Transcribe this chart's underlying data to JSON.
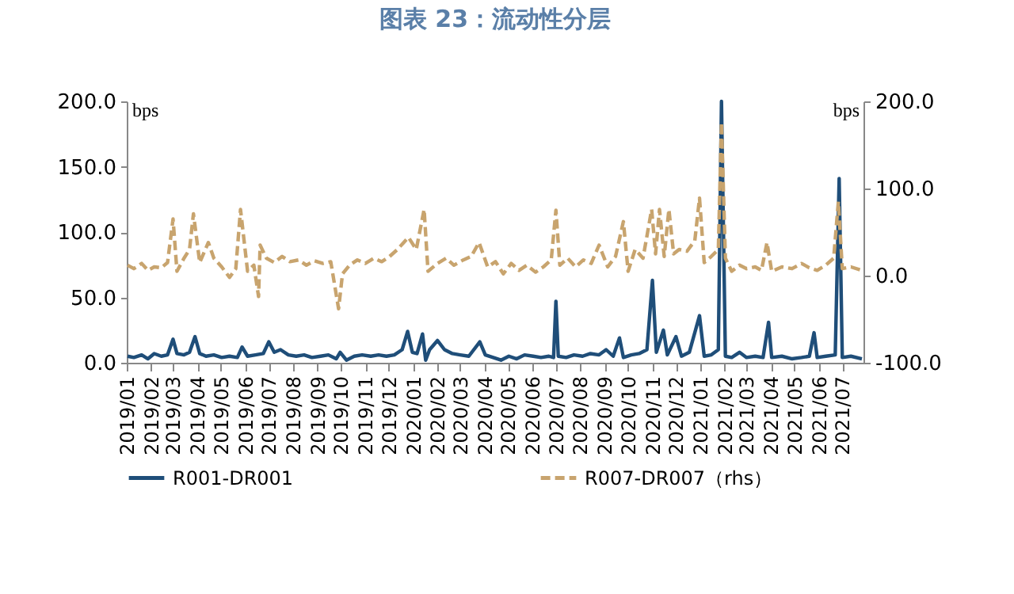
{
  "chart_data": {
    "type": "line",
    "title": "图表 23：流动性分层",
    "ylabel": "bps",
    "y2label": "bps",
    "legend": "bottom",
    "grid": false,
    "xlim": [
      "2019-01-01",
      "2021-07-28"
    ],
    "xticks": [
      {
        "value": "2019-01",
        "label": "2019/01"
      },
      {
        "value": "2019-02",
        "label": "2019/02"
      },
      {
        "value": "2019-03",
        "label": "2019/03"
      },
      {
        "value": "2019-04",
        "label": "2019/04"
      },
      {
        "value": "2019-05",
        "label": "2019/05"
      },
      {
        "value": "2019-06",
        "label": "2019/06"
      },
      {
        "value": "2019-07",
        "label": "2019/07"
      },
      {
        "value": "2019-08",
        "label": "2019/08"
      },
      {
        "value": "2019-09",
        "label": "2019/09"
      },
      {
        "value": "2019-10",
        "label": "2019/10"
      },
      {
        "value": "2019-11",
        "label": "2019/11"
      },
      {
        "value": "2019-12",
        "label": "2019/12"
      },
      {
        "value": "2020-01",
        "label": "2020/01"
      },
      {
        "value": "2020-02",
        "label": "2020/02"
      },
      {
        "value": "2020-03",
        "label": "2020/03"
      },
      {
        "value": "2020-04",
        "label": "2020/04"
      },
      {
        "value": "2020-05",
        "label": "2020/05"
      },
      {
        "value": "2020-06",
        "label": "2020/06"
      },
      {
        "value": "2020-07",
        "label": "2020/07"
      },
      {
        "value": "2020-08",
        "label": "2020/08"
      },
      {
        "value": "2020-09",
        "label": "2020/09"
      },
      {
        "value": "2020-10",
        "label": "2020/10"
      },
      {
        "value": "2020-11",
        "label": "2020/11"
      },
      {
        "value": "2020-12",
        "label": "2020/12"
      },
      {
        "value": "2021-01",
        "label": "2021/01"
      },
      {
        "value": "2021-02",
        "label": "2021/02"
      },
      {
        "value": "2021-03",
        "label": "2021/03"
      },
      {
        "value": "2021-04",
        "label": "2021/04"
      },
      {
        "value": "2021-05",
        "label": "2021/05"
      },
      {
        "value": "2021-06",
        "label": "2021/06"
      },
      {
        "value": "2021-07",
        "label": "2021/07"
      }
    ],
    "ylim": [
      0,
      200
    ],
    "yticks": [
      {
        "value": 0,
        "label": "0.0"
      },
      {
        "value": 50,
        "label": "50.0"
      },
      {
        "value": 100,
        "label": "100.0"
      },
      {
        "value": 150,
        "label": "150.0"
      },
      {
        "value": 200,
        "label": "200.0"
      }
    ],
    "y2lim": [
      -100,
      200
    ],
    "y2ticks": [
      {
        "value": -100,
        "label": "-100.0"
      },
      {
        "value": 0,
        "label": "0.0"
      },
      {
        "value": 100,
        "label": "100.0"
      },
      {
        "value": 200,
        "label": "200.0"
      }
    ],
    "series": [
      {
        "name": "R001-DR001",
        "color": "#1f4e79",
        "line_style": "solid",
        "x": [
          "2019-01-02",
          "2019-01-10",
          "2019-01-20",
          "2019-01-28",
          "2019-02-05",
          "2019-02-14",
          "2019-02-22",
          "2019-03-01",
          "2019-03-06",
          "2019-03-15",
          "2019-03-22",
          "2019-03-29",
          "2019-04-04",
          "2019-04-12",
          "2019-04-22",
          "2019-05-02",
          "2019-05-12",
          "2019-05-22",
          "2019-05-28",
          "2019-06-04",
          "2019-06-14",
          "2019-06-24",
          "2019-07-01",
          "2019-07-08",
          "2019-07-16",
          "2019-07-26",
          "2019-08-05",
          "2019-08-15",
          "2019-08-25",
          "2019-09-05",
          "2019-09-15",
          "2019-09-25",
          "2019-09-30",
          "2019-10-08",
          "2019-10-18",
          "2019-10-28",
          "2019-11-08",
          "2019-11-18",
          "2019-11-28",
          "2019-12-08",
          "2019-12-18",
          "2019-12-25",
          "2019-12-31",
          "2020-01-06",
          "2020-01-13",
          "2020-01-17",
          "2020-01-22",
          "2020-02-01",
          "2020-02-10",
          "2020-02-20",
          "2020-03-01",
          "2020-03-12",
          "2020-03-26",
          "2020-04-02",
          "2020-04-12",
          "2020-04-22",
          "2020-05-02",
          "2020-05-12",
          "2020-05-22",
          "2020-06-02",
          "2020-06-12",
          "2020-06-22",
          "2020-06-28",
          "2020-07-01",
          "2020-07-04",
          "2020-07-14",
          "2020-07-24",
          "2020-08-04",
          "2020-08-14",
          "2020-08-25",
          "2020-09-03",
          "2020-09-12",
          "2020-09-20",
          "2020-09-25",
          "2020-10-05",
          "2020-10-15",
          "2020-10-25",
          "2020-11-01",
          "2020-11-06",
          "2020-11-15",
          "2020-11-20",
          "2020-12-01",
          "2020-12-08",
          "2020-12-18",
          "2020-12-31",
          "2021-01-06",
          "2021-01-15",
          "2021-01-24",
          "2021-01-28",
          "2021-02-02",
          "2021-02-10",
          "2021-02-20",
          "2021-03-01",
          "2021-03-12",
          "2021-03-22",
          "2021-03-29",
          "2021-04-02",
          "2021-04-15",
          "2021-04-28",
          "2021-05-10",
          "2021-05-20",
          "2021-05-26",
          "2021-05-30",
          "2021-06-10",
          "2021-06-22",
          "2021-06-27",
          "2021-07-01",
          "2021-07-12",
          "2021-07-26"
        ],
        "values": [
          5,
          4,
          6,
          3,
          7,
          5,
          6,
          18,
          7,
          6,
          8,
          20,
          7,
          5,
          6,
          4,
          5,
          4,
          12,
          5,
          6,
          7,
          16,
          8,
          10,
          6,
          5,
          6,
          4,
          5,
          6,
          3,
          8,
          2,
          5,
          6,
          5,
          6,
          5,
          6,
          10,
          24,
          8,
          7,
          22,
          2,
          10,
          17,
          10,
          7,
          6,
          5,
          16,
          6,
          4,
          2,
          5,
          3,
          6,
          5,
          4,
          5,
          4,
          47,
          5,
          4,
          6,
          5,
          7,
          6,
          10,
          5,
          19,
          4,
          6,
          7,
          10,
          63,
          8,
          25,
          6,
          20,
          5,
          8,
          36,
          5,
          6,
          10,
          200,
          5,
          4,
          8,
          4,
          5,
          4,
          31,
          4,
          5,
          3,
          4,
          5,
          23,
          4,
          5,
          6,
          141,
          4,
          5,
          3
        ]
      },
      {
        "name": "R007-DR007（rhs）",
        "color": "#c8a46e",
        "line_style": "dashed",
        "axis": "y2",
        "x": [
          "2019-01-02",
          "2019-01-10",
          "2019-01-20",
          "2019-01-28",
          "2019-02-05",
          "2019-02-14",
          "2019-02-22",
          "2019-03-01",
          "2019-03-06",
          "2019-03-15",
          "2019-03-22",
          "2019-03-27",
          "2019-04-04",
          "2019-04-15",
          "2019-04-22",
          "2019-05-02",
          "2019-05-12",
          "2019-05-20",
          "2019-05-26",
          "2019-06-04",
          "2019-06-12",
          "2019-06-18",
          "2019-06-20",
          "2019-06-28",
          "2019-07-08",
          "2019-07-18",
          "2019-07-28",
          "2019-08-08",
          "2019-08-18",
          "2019-08-28",
          "2019-09-08",
          "2019-09-18",
          "2019-09-28",
          "2019-10-03",
          "2019-10-12",
          "2019-10-22",
          "2019-11-01",
          "2019-11-12",
          "2019-11-22",
          "2019-12-02",
          "2019-12-12",
          "2019-12-20",
          "2019-12-26",
          "2020-01-05",
          "2020-01-15",
          "2020-01-20",
          "2020-02-01",
          "2020-02-12",
          "2020-02-22",
          "2020-03-05",
          "2020-03-15",
          "2020-03-25",
          "2020-04-05",
          "2020-04-15",
          "2020-04-25",
          "2020-05-05",
          "2020-05-15",
          "2020-05-25",
          "2020-06-05",
          "2020-06-15",
          "2020-06-25",
          "2020-07-01",
          "2020-07-06",
          "2020-07-16",
          "2020-07-26",
          "2020-08-05",
          "2020-08-15",
          "2020-08-25",
          "2020-09-05",
          "2020-09-15",
          "2020-09-25",
          "2020-10-01",
          "2020-10-10",
          "2020-10-20",
          "2020-10-31",
          "2020-11-05",
          "2020-11-10",
          "2020-11-16",
          "2020-11-22",
          "2020-11-28",
          "2020-12-05",
          "2020-12-15",
          "2020-12-25",
          "2020-12-31",
          "2021-01-06",
          "2021-01-15",
          "2021-01-24",
          "2021-01-28",
          "2021-02-02",
          "2021-02-10",
          "2021-02-20",
          "2021-03-01",
          "2021-03-12",
          "2021-03-20",
          "2021-03-27",
          "2021-04-02",
          "2021-04-15",
          "2021-04-28",
          "2021-05-10",
          "2021-05-20",
          "2021-05-30",
          "2021-06-10",
          "2021-06-20",
          "2021-06-26",
          "2021-07-01",
          "2021-07-12",
          "2021-07-26"
        ],
        "values": [
          12,
          8,
          14,
          6,
          10,
          9,
          15,
          65,
          5,
          20,
          30,
          71,
          15,
          38,
          20,
          10,
          -2,
          8,
          76,
          5,
          12,
          -24,
          35,
          20,
          15,
          22,
          16,
          18,
          12,
          17,
          14,
          16,
          -38,
          2,
          12,
          18,
          14,
          20,
          16,
          22,
          30,
          38,
          44,
          30,
          76,
          5,
          14,
          20,
          12,
          18,
          22,
          38,
          10,
          16,
          2,
          14,
          6,
          12,
          4,
          10,
          18,
          75,
          12,
          20,
          10,
          18,
          14,
          35,
          10,
          22,
          62,
          5,
          30,
          20,
          76,
          25,
          76,
          22,
          76,
          25,
          30,
          28,
          40,
          89,
          15,
          22,
          30,
          176,
          20,
          5,
          12,
          8,
          10,
          6,
          38,
          5,
          10,
          8,
          14,
          9,
          6,
          12,
          20,
          85,
          8,
          10,
          6
        ]
      }
    ]
  }
}
